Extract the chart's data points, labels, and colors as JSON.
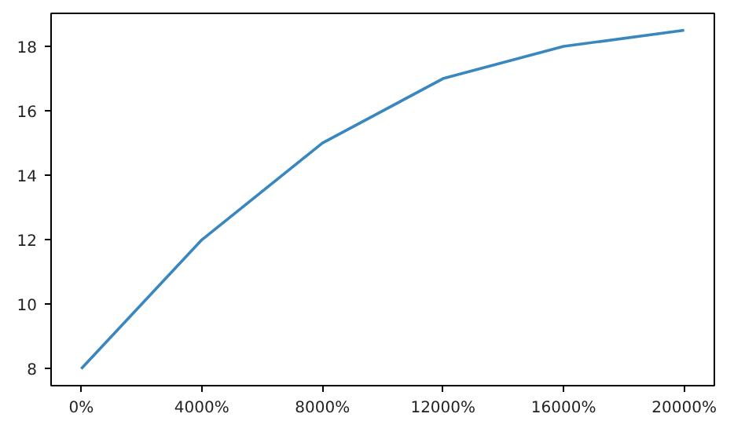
{
  "chart_data": {
    "type": "line",
    "x": [
      0,
      4000,
      8000,
      12000,
      16000,
      20000
    ],
    "series": [
      {
        "color": "#3a87c0",
        "values": [
          8,
          12,
          15,
          17,
          18,
          18.5
        ]
      }
    ],
    "xlim": [
      -1000,
      21000
    ],
    "xticks": [
      {
        "value": 0,
        "label": "0%"
      },
      {
        "value": 4000,
        "label": "4000%"
      },
      {
        "value": 8000,
        "label": "8000%"
      },
      {
        "value": 12000,
        "label": "12000%"
      },
      {
        "value": 16000,
        "label": "16000%"
      },
      {
        "value": 20000,
        "label": "20000%"
      }
    ],
    "ylim": [
      7.475,
      19.025
    ],
    "yticks": [
      8,
      10,
      12,
      14,
      16,
      18
    ],
    "grid": false,
    "line_style": "solid"
  }
}
